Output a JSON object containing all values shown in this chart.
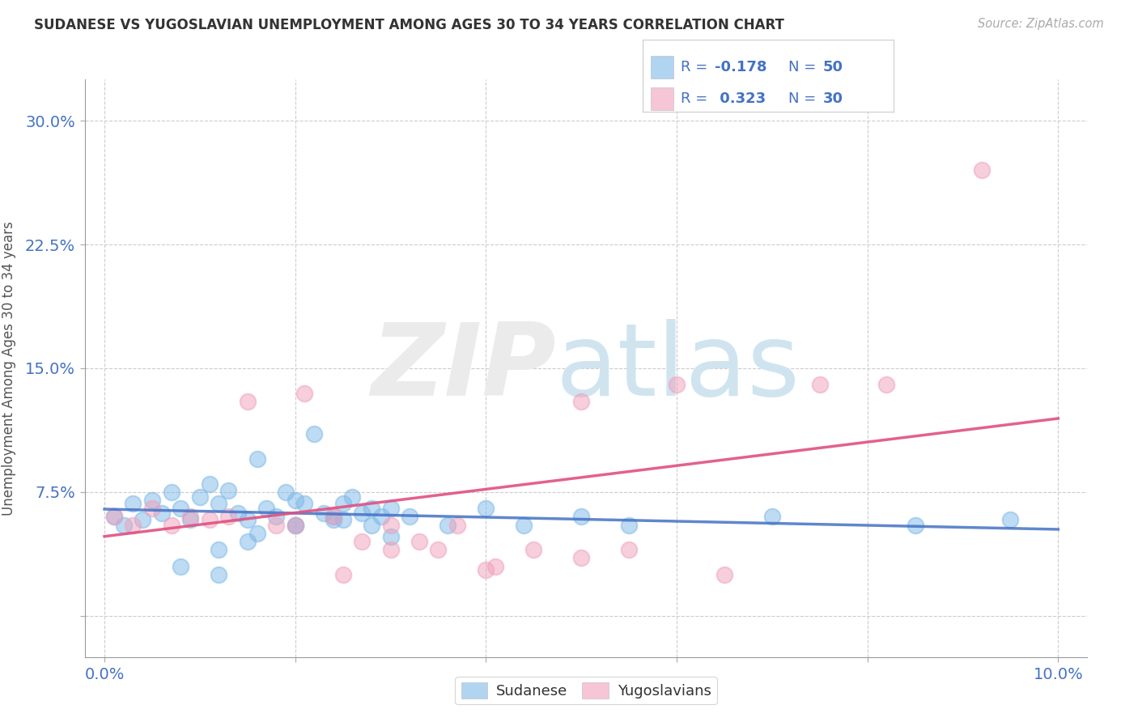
{
  "title": "SUDANESE VS YUGOSLAVIAN UNEMPLOYMENT AMONG AGES 30 TO 34 YEARS CORRELATION CHART",
  "source": "Source: ZipAtlas.com",
  "ylabel": "Unemployment Among Ages 30 to 34 years",
  "xlim": [
    -0.002,
    0.103
  ],
  "ylim": [
    -0.025,
    0.325
  ],
  "xticks": [
    0.0,
    0.02,
    0.04,
    0.06,
    0.08,
    0.1
  ],
  "xticklabels": [
    "0.0%",
    "",
    "",
    "",
    "",
    "10.0%"
  ],
  "yticks": [
    0.0,
    0.075,
    0.15,
    0.225,
    0.3
  ],
  "yticklabels": [
    "",
    "7.5%",
    "15.0%",
    "22.5%",
    "30.0%"
  ],
  "sudanese_color": "#7db8e8",
  "yugoslavian_color": "#f0a0bb",
  "sudanese_line_color": "#4472c4",
  "yugoslavian_line_color": "#e05080",
  "sudanese_R": -0.178,
  "sudanese_N": 50,
  "yugoslavian_R": 0.323,
  "yugoslavian_N": 30,
  "background_color": "#ffffff",
  "grid_color": "#cccccc",
  "sudanese_x": [
    0.001,
    0.002,
    0.003,
    0.004,
    0.005,
    0.006,
    0.007,
    0.008,
    0.009,
    0.01,
    0.011,
    0.012,
    0.013,
    0.014,
    0.015,
    0.016,
    0.017,
    0.018,
    0.019,
    0.02,
    0.021,
    0.022,
    0.023,
    0.024,
    0.025,
    0.026,
    0.027,
    0.028,
    0.029,
    0.03,
    0.012,
    0.016,
    0.02,
    0.024,
    0.028,
    0.032,
    0.036,
    0.04,
    0.044,
    0.05,
    0.015,
    0.02,
    0.025,
    0.03,
    0.008,
    0.012,
    0.055,
    0.07,
    0.085,
    0.095
  ],
  "sudanese_y": [
    0.06,
    0.055,
    0.068,
    0.058,
    0.07,
    0.062,
    0.075,
    0.065,
    0.058,
    0.072,
    0.08,
    0.068,
    0.076,
    0.062,
    0.058,
    0.095,
    0.065,
    0.06,
    0.075,
    0.055,
    0.068,
    0.11,
    0.062,
    0.058,
    0.068,
    0.072,
    0.062,
    0.055,
    0.06,
    0.065,
    0.04,
    0.05,
    0.055,
    0.06,
    0.065,
    0.06,
    0.055,
    0.065,
    0.055,
    0.06,
    0.045,
    0.07,
    0.058,
    0.048,
    0.03,
    0.025,
    0.055,
    0.06,
    0.055,
    0.058
  ],
  "yugoslavian_x": [
    0.001,
    0.003,
    0.005,
    0.007,
    0.009,
    0.011,
    0.013,
    0.015,
    0.018,
    0.021,
    0.024,
    0.027,
    0.03,
    0.033,
    0.037,
    0.041,
    0.045,
    0.05,
    0.02,
    0.025,
    0.03,
    0.035,
    0.04,
    0.05,
    0.055,
    0.06,
    0.065,
    0.075,
    0.082,
    0.092
  ],
  "yugoslavian_y": [
    0.06,
    0.055,
    0.065,
    0.055,
    0.06,
    0.058,
    0.06,
    0.13,
    0.055,
    0.135,
    0.06,
    0.045,
    0.04,
    0.045,
    0.055,
    0.03,
    0.04,
    0.13,
    0.055,
    0.025,
    0.055,
    0.04,
    0.028,
    0.035,
    0.04,
    0.14,
    0.025,
    0.14,
    0.14,
    0.27
  ]
}
